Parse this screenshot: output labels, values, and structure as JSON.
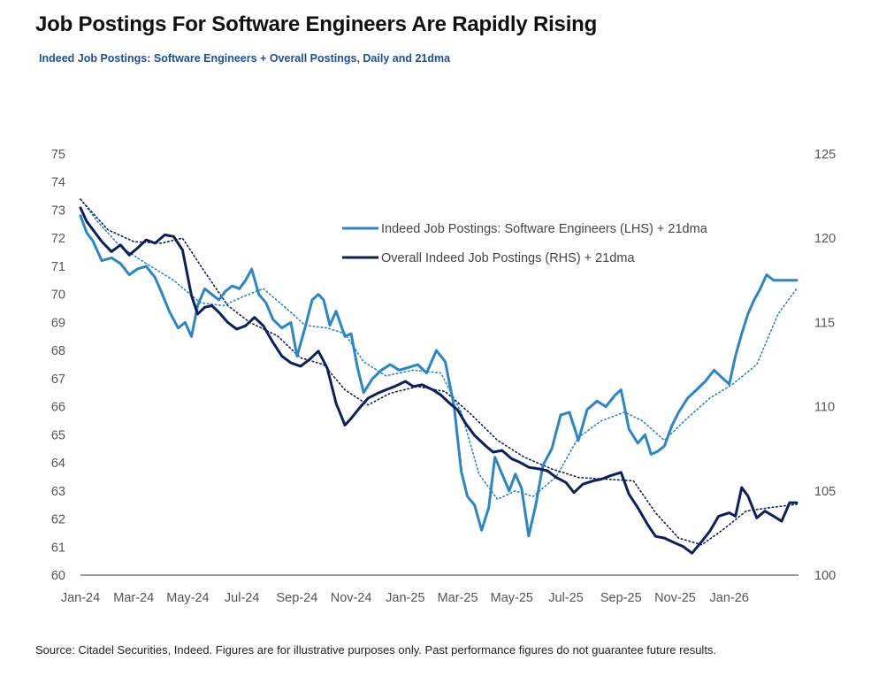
{
  "title": "Job Postings For Software Engineers Are Rapidly Rising",
  "subtitle": "Indeed Job Postings: Software Engineers + Overall Postings, Daily and 21dma",
  "source": "Source: Citadel Securities, Indeed. Figures are for illustrative purposes only. Past performance figures do not guarantee future results.",
  "colors": {
    "software": "#2a86c8",
    "overall": "#0d1f5c",
    "axis": "#333333"
  },
  "chart_data": {
    "type": "line",
    "x_tick_labels": [
      "Jan-24",
      "Mar-24",
      "May-24",
      "Jul-24",
      "Sep-24",
      "Nov-24",
      "Jan-25",
      "Mar-25",
      "May-25",
      "Jul-25",
      "Sep-25",
      "Nov-25",
      "Jan-26"
    ],
    "x_tick_dates": [
      "2024-01-01",
      "2024-03-01",
      "2024-05-01",
      "2024-07-01",
      "2024-09-01",
      "2024-11-01",
      "2025-01-01",
      "2025-03-01",
      "2025-05-01",
      "2025-07-01",
      "2025-09-01",
      "2025-11-01",
      "2026-01-01"
    ],
    "xlim": [
      "2024-01-01",
      "2026-03-20"
    ],
    "y_left": {
      "ylim": [
        60,
        75
      ],
      "ticks": [
        60,
        61,
        62,
        63,
        64,
        65,
        66,
        67,
        68,
        69,
        70,
        71,
        72,
        73,
        74,
        75
      ]
    },
    "y_right": {
      "ylim": [
        100,
        125
      ],
      "ticks": [
        100,
        105,
        110,
        115,
        120,
        125
      ]
    },
    "grid": false,
    "legend_position": "top-center",
    "series": [
      {
        "name": "Indeed Job Postings: Software Engineers (LHS) + 21dma",
        "axis": "left",
        "x": [
          "2024-01-01",
          "2024-01-08",
          "2024-01-15",
          "2024-01-25",
          "2024-02-05",
          "2024-02-15",
          "2024-02-25",
          "2024-03-05",
          "2024-03-15",
          "2024-03-25",
          "2024-04-01",
          "2024-04-10",
          "2024-04-20",
          "2024-04-28",
          "2024-05-05",
          "2024-05-12",
          "2024-05-20",
          "2024-05-28",
          "2024-06-05",
          "2024-06-12",
          "2024-06-20",
          "2024-06-28",
          "2024-07-05",
          "2024-07-12",
          "2024-07-20",
          "2024-07-28",
          "2024-08-05",
          "2024-08-15",
          "2024-08-25",
          "2024-09-01",
          "2024-09-10",
          "2024-09-18",
          "2024-09-25",
          "2024-10-01",
          "2024-10-08",
          "2024-10-15",
          "2024-10-25",
          "2024-11-01",
          "2024-11-08",
          "2024-11-15",
          "2024-11-25",
          "2024-12-05",
          "2024-12-15",
          "2024-12-25",
          "2025-01-05",
          "2025-01-15",
          "2025-01-25",
          "2025-02-05",
          "2025-02-15",
          "2025-02-25",
          "2025-03-05",
          "2025-03-12",
          "2025-03-20",
          "2025-03-28",
          "2025-04-05",
          "2025-04-12",
          "2025-04-20",
          "2025-04-28",
          "2025-05-05",
          "2025-05-12",
          "2025-05-20",
          "2025-05-28",
          "2025-06-05",
          "2025-06-15",
          "2025-06-25",
          "2025-07-05",
          "2025-07-15",
          "2025-07-25",
          "2025-08-05",
          "2025-08-15",
          "2025-08-25",
          "2025-09-01",
          "2025-09-10",
          "2025-09-20",
          "2025-09-28",
          "2025-10-05",
          "2025-10-12",
          "2025-10-20",
          "2025-10-28",
          "2025-11-05",
          "2025-11-15",
          "2025-11-25",
          "2025-12-05",
          "2025-12-15",
          "2025-12-25",
          "2026-01-01",
          "2026-01-08",
          "2026-01-15",
          "2026-01-22",
          "2026-01-29",
          "2026-02-05",
          "2026-02-12",
          "2026-02-20",
          "2026-03-01",
          "2026-03-10",
          "2026-03-18"
        ],
        "values": [
          72.8,
          72.2,
          71.9,
          71.2,
          71.3,
          71.1,
          70.7,
          70.9,
          71.0,
          70.6,
          70.1,
          69.4,
          68.8,
          69.0,
          68.5,
          69.6,
          70.2,
          70.0,
          69.8,
          70.1,
          70.3,
          70.2,
          70.5,
          70.9,
          70.0,
          69.7,
          69.1,
          68.8,
          69.0,
          67.8,
          68.8,
          69.8,
          70.0,
          69.8,
          68.9,
          69.4,
          68.5,
          68.6,
          67.4,
          66.5,
          67.0,
          67.3,
          67.5,
          67.3,
          67.4,
          67.5,
          67.2,
          68.0,
          67.6,
          66.0,
          63.7,
          62.8,
          62.5,
          61.6,
          62.4,
          64.2,
          63.6,
          63.0,
          63.6,
          63.1,
          61.4,
          62.5,
          63.9,
          64.5,
          65.7,
          65.8,
          64.8,
          65.9,
          66.2,
          66.0,
          66.4,
          66.6,
          65.2,
          64.7,
          65.0,
          64.3,
          64.4,
          64.6,
          65.3,
          65.8,
          66.3,
          66.6,
          66.9,
          67.3,
          67.0,
          66.8,
          67.8,
          68.6,
          69.3,
          69.8,
          70.2,
          70.7,
          70.5,
          70.5,
          70.5,
          70.5
        ]
      },
      {
        "name": "Overall Indeed Job Postings (RHS) + 21dma",
        "axis": "right",
        "x": [
          "2024-01-01",
          "2024-01-08",
          "2024-01-15",
          "2024-01-25",
          "2024-02-05",
          "2024-02-15",
          "2024-02-25",
          "2024-03-05",
          "2024-03-15",
          "2024-03-25",
          "2024-04-05",
          "2024-04-15",
          "2024-04-25",
          "2024-05-05",
          "2024-05-12",
          "2024-05-20",
          "2024-05-28",
          "2024-06-05",
          "2024-06-15",
          "2024-06-25",
          "2024-07-05",
          "2024-07-15",
          "2024-07-25",
          "2024-08-05",
          "2024-08-15",
          "2024-08-25",
          "2024-09-05",
          "2024-09-15",
          "2024-09-25",
          "2024-10-05",
          "2024-10-15",
          "2024-10-25",
          "2024-11-01",
          "2024-11-10",
          "2024-11-20",
          "2024-12-01",
          "2024-12-10",
          "2024-12-20",
          "2025-01-01",
          "2025-01-10",
          "2025-01-20",
          "2025-02-01",
          "2025-02-10",
          "2025-02-20",
          "2025-03-01",
          "2025-03-10",
          "2025-03-20",
          "2025-04-01",
          "2025-04-10",
          "2025-04-20",
          "2025-05-01",
          "2025-05-10",
          "2025-05-20",
          "2025-06-01",
          "2025-06-10",
          "2025-06-20",
          "2025-07-01",
          "2025-07-10",
          "2025-07-20",
          "2025-08-01",
          "2025-08-10",
          "2025-08-20",
          "2025-09-01",
          "2025-09-10",
          "2025-09-20",
          "2025-10-01",
          "2025-10-10",
          "2025-10-20",
          "2025-11-01",
          "2025-11-10",
          "2025-11-20",
          "2025-12-01",
          "2025-12-10",
          "2025-12-20",
          "2026-01-01",
          "2026-01-08",
          "2026-01-15",
          "2026-01-22",
          "2026-02-01",
          "2026-02-10",
          "2026-02-20",
          "2026-03-01",
          "2026-03-10",
          "2026-03-18"
        ],
        "values": [
          121.8,
          121.0,
          120.5,
          119.8,
          119.2,
          119.6,
          119.0,
          119.4,
          119.9,
          119.7,
          120.2,
          120.1,
          119.3,
          116.6,
          115.5,
          115.9,
          116.0,
          115.6,
          115.0,
          114.6,
          114.8,
          115.3,
          114.8,
          113.8,
          113.0,
          112.6,
          112.4,
          112.8,
          113.3,
          112.3,
          110.2,
          108.9,
          109.3,
          109.9,
          110.5,
          110.8,
          111.0,
          111.2,
          111.5,
          111.2,
          111.3,
          111.0,
          110.7,
          110.2,
          109.8,
          109.0,
          108.3,
          107.7,
          107.3,
          107.4,
          106.9,
          106.7,
          106.4,
          106.3,
          106.2,
          105.8,
          105.5,
          104.9,
          105.4,
          105.6,
          105.7,
          105.9,
          106.1,
          104.8,
          104.0,
          103.0,
          102.3,
          102.2,
          101.9,
          101.7,
          101.3,
          102.0,
          102.6,
          103.5,
          103.7,
          103.5,
          105.2,
          104.7,
          103.4,
          103.8,
          103.5,
          103.2,
          104.3,
          104.3
        ]
      }
    ],
    "series_21dma": [
      {
        "axis": "left",
        "x": [
          "2024-01-01",
          "2024-01-20",
          "2024-02-15",
          "2024-03-15",
          "2024-04-15",
          "2024-05-15",
          "2024-06-10",
          "2024-07-01",
          "2024-07-25",
          "2024-08-20",
          "2024-09-10",
          "2024-10-05",
          "2024-10-25",
          "2024-11-15",
          "2024-12-10",
          "2025-01-10",
          "2025-02-10",
          "2025-03-05",
          "2025-03-25",
          "2025-04-15",
          "2025-05-05",
          "2025-05-25",
          "2025-06-20",
          "2025-07-15",
          "2025-08-10",
          "2025-09-05",
          "2025-09-25",
          "2025-10-20",
          "2025-11-15",
          "2025-12-10",
          "2026-01-05",
          "2026-02-01",
          "2026-02-25",
          "2026-03-18"
        ],
        "values": [
          73.4,
          72.6,
          71.7,
          71.1,
          70.5,
          69.7,
          69.6,
          69.9,
          70.2,
          69.5,
          68.9,
          68.8,
          68.6,
          67.6,
          67.1,
          67.3,
          67.2,
          65.8,
          63.6,
          62.7,
          63.0,
          62.8,
          63.5,
          64.9,
          65.5,
          65.8,
          65.5,
          64.8,
          65.6,
          66.3,
          66.8,
          67.5,
          69.3,
          70.2
        ]
      },
      {
        "axis": "right",
        "x": [
          "2024-01-01",
          "2024-02-01",
          "2024-03-01",
          "2024-04-01",
          "2024-04-25",
          "2024-05-20",
          "2024-06-15",
          "2024-07-10",
          "2024-08-10",
          "2024-09-05",
          "2024-10-01",
          "2024-10-25",
          "2024-11-20",
          "2024-12-15",
          "2025-01-15",
          "2025-02-15",
          "2025-03-15",
          "2025-04-15",
          "2025-05-15",
          "2025-06-15",
          "2025-07-15",
          "2025-08-15",
          "2025-09-15",
          "2025-10-10",
          "2025-11-05",
          "2025-12-01",
          "2025-12-25",
          "2026-01-20",
          "2026-02-15",
          "2026-03-18"
        ],
        "values": [
          122.3,
          120.5,
          119.8,
          119.7,
          120.0,
          118.0,
          116.0,
          115.0,
          114.2,
          112.9,
          112.5,
          111.0,
          110.1,
          110.8,
          111.2,
          110.9,
          109.6,
          108.0,
          107.0,
          106.3,
          105.8,
          105.7,
          105.6,
          103.7,
          102.2,
          101.8,
          102.7,
          103.8,
          104.0,
          104.2
        ]
      }
    ]
  }
}
